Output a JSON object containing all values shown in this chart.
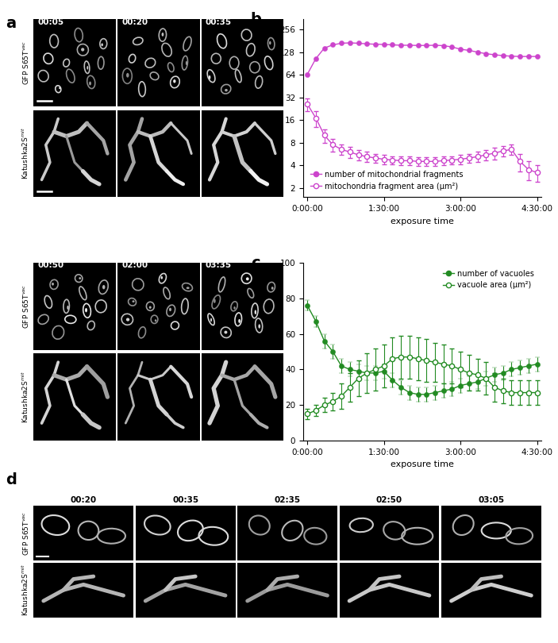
{
  "panel_b": {
    "xlabel": "exposure time",
    "xtick_labels": [
      "0:00:00",
      "1:30:00",
      "3:00:00",
      "4:30:00"
    ],
    "xtick_positions": [
      0,
      9,
      18,
      27
    ],
    "yticks_log": [
      2,
      4,
      8,
      16,
      32,
      64,
      128,
      256
    ],
    "ylim_log": [
      1.5,
      350
    ],
    "mito_count_x": [
      0,
      1,
      2,
      3,
      4,
      5,
      6,
      7,
      8,
      9,
      10,
      11,
      12,
      13,
      14,
      15,
      16,
      17,
      18,
      19,
      20,
      21,
      22,
      23,
      24,
      25,
      26,
      27
    ],
    "mito_count_y": [
      65,
      105,
      145,
      160,
      168,
      170,
      168,
      165,
      163,
      162,
      160,
      158,
      158,
      157,
      157,
      158,
      156,
      150,
      140,
      135,
      128,
      122,
      118,
      115,
      113,
      112,
      112,
      112
    ],
    "mito_area_x": [
      0,
      1,
      2,
      3,
      4,
      5,
      6,
      7,
      8,
      9,
      10,
      11,
      12,
      13,
      14,
      15,
      16,
      17,
      18,
      19,
      20,
      21,
      22,
      23,
      24,
      25,
      26,
      27
    ],
    "mito_area_y": [
      26,
      17,
      10,
      7.5,
      6.5,
      6.0,
      5.5,
      5.2,
      5.0,
      4.8,
      4.7,
      4.6,
      4.6,
      4.5,
      4.5,
      4.5,
      4.6,
      4.7,
      4.8,
      5.0,
      5.2,
      5.5,
      5.8,
      6.2,
      6.5,
      4.5,
      3.5,
      3.2
    ],
    "mito_area_err": [
      5,
      4,
      2,
      1.5,
      1,
      1,
      0.8,
      0.8,
      0.7,
      0.7,
      0.6,
      0.6,
      0.6,
      0.6,
      0.6,
      0.6,
      0.6,
      0.6,
      0.7,
      0.7,
      0.8,
      0.8,
      1.0,
      1.0,
      1.0,
      1.2,
      1.0,
      0.8
    ],
    "color": "#cc44cc",
    "legend_filled": "number of mitochondrial fragments",
    "legend_open": "mitochondria fragment area (μm²)"
  },
  "panel_c": {
    "xlabel": "exposure time",
    "xtick_labels": [
      "0:00:00",
      "1:30:00",
      "3:00:00",
      "4:30:00"
    ],
    "xtick_positions": [
      0,
      9,
      18,
      27
    ],
    "yticks": [
      0,
      20,
      40,
      60,
      80,
      100
    ],
    "ylim": [
      0,
      100
    ],
    "vac_count_x": [
      0,
      1,
      2,
      3,
      4,
      5,
      6,
      7,
      8,
      9,
      10,
      11,
      12,
      13,
      14,
      15,
      16,
      17,
      18,
      19,
      20,
      21,
      22,
      23,
      24,
      25,
      26,
      27
    ],
    "vac_count_y": [
      76,
      67,
      56,
      50,
      42,
      40,
      39,
      38,
      38,
      39,
      34,
      30,
      27,
      26,
      26,
      27,
      28,
      29,
      31,
      32,
      33,
      35,
      37,
      38,
      40,
      41,
      42,
      43
    ],
    "vac_area_x": [
      0,
      1,
      2,
      3,
      4,
      5,
      6,
      7,
      8,
      9,
      10,
      11,
      12,
      13,
      14,
      15,
      16,
      17,
      18,
      19,
      20,
      21,
      22,
      23,
      24,
      25,
      26,
      27
    ],
    "vac_area_y": [
      15,
      17,
      20,
      22,
      25,
      30,
      35,
      38,
      40,
      42,
      46,
      47,
      47,
      46,
      45,
      44,
      43,
      42,
      40,
      38,
      37,
      35,
      30,
      28,
      27,
      27,
      27,
      27
    ],
    "vac_count_err": [
      3,
      3,
      4,
      4,
      4,
      4,
      4,
      4,
      4,
      4,
      4,
      4,
      4,
      4,
      4,
      4,
      4,
      4,
      4,
      4,
      4,
      4,
      4,
      4,
      4,
      4,
      4,
      4
    ],
    "vac_area_err": [
      3,
      3,
      4,
      5,
      7,
      8,
      10,
      11,
      12,
      12,
      12,
      12,
      12,
      12,
      12,
      11,
      11,
      10,
      10,
      10,
      9,
      9,
      8,
      7,
      7,
      7,
      7,
      7
    ],
    "color": "#228B22",
    "legend_filled": "number of vacuoles",
    "legend_open": "vacuole area (μm²)"
  },
  "panel_label_fontsize": 14,
  "axis_fontsize": 8,
  "legend_fontsize": 7,
  "tick_label_fontsize": 7.5,
  "timestamps_top": [
    "00:05",
    "00:20",
    "00:35"
  ],
  "timestamps_mid": [
    "00:50",
    "02:00",
    "03:35"
  ],
  "timestamps_d": [
    "00:20",
    "00:35",
    "02:35",
    "02:50",
    "03:05"
  ]
}
